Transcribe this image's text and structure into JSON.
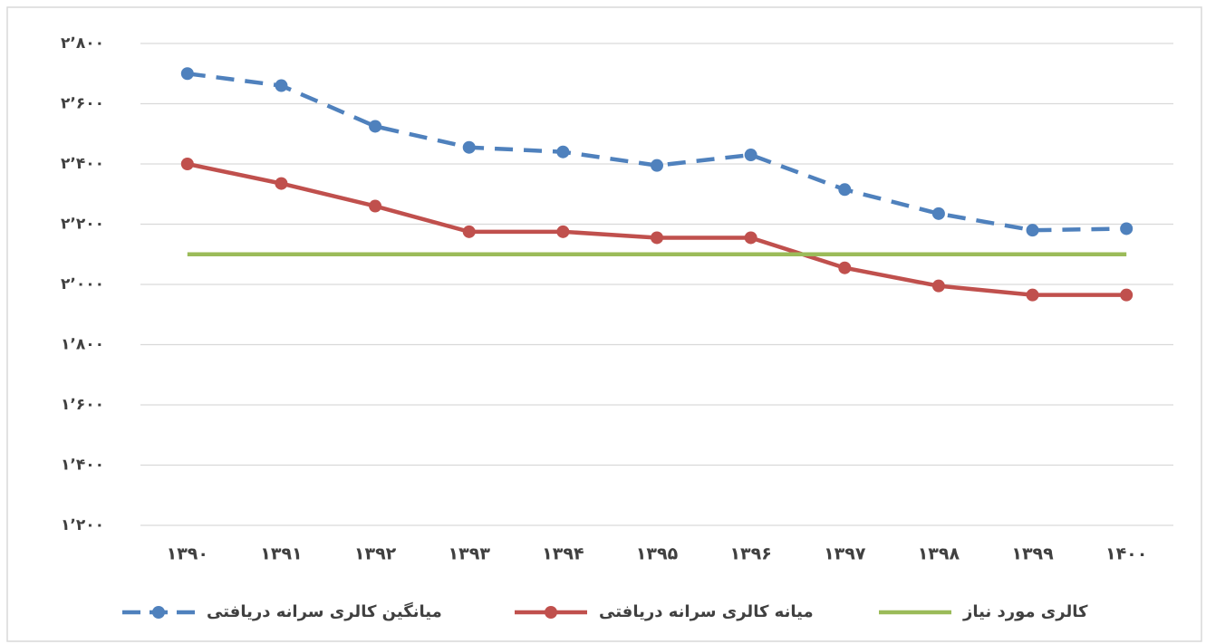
{
  "chart_data": {
    "type": "line",
    "categories": [
      "۱۳۹۰",
      "۱۳۹۱",
      "۱۳۹۲",
      "۱۳۹۳",
      "۱۳۹۴",
      "۱۳۹۵",
      "۱۳۹۶",
      "۱۳۹۷",
      "۱۳۹۸",
      "۱۳۹۹",
      "۱۴۰۰"
    ],
    "series": [
      {
        "name": "میانگین کالری سرانه دریافتی",
        "color": "#4f81bd",
        "dashed": true,
        "markers": true,
        "values": [
          2700,
          2660,
          2525,
          2455,
          2440,
          2395,
          2430,
          2315,
          2235,
          2180,
          2185
        ]
      },
      {
        "name": "میانه کالری سرانه دریافتی",
        "color": "#c0504d",
        "dashed": false,
        "markers": true,
        "values": [
          2400,
          2335,
          2260,
          2175,
          2175,
          2155,
          2155,
          2055,
          1995,
          1965,
          1965
        ]
      },
      {
        "name": "کالری مورد نیاز",
        "color": "#9bbb59",
        "dashed": false,
        "markers": false,
        "values": [
          2100,
          2100,
          2100,
          2100,
          2100,
          2100,
          2100,
          2100,
          2100,
          2100,
          2100
        ]
      }
    ],
    "ylim": [
      1200,
      2800
    ],
    "yticks": [
      {
        "value": 1200,
        "label": "۱٬۲۰۰"
      },
      {
        "value": 1400,
        "label": "۱٬۴۰۰"
      },
      {
        "value": 1600,
        "label": "۱٬۶۰۰"
      },
      {
        "value": 1800,
        "label": "۱٬۸۰۰"
      },
      {
        "value": 2000,
        "label": "۲٬۰۰۰"
      },
      {
        "value": 2200,
        "label": "۲٬۲۰۰"
      },
      {
        "value": 2400,
        "label": "۲٬۴۰۰"
      },
      {
        "value": 2600,
        "label": "۲٬۶۰۰"
      },
      {
        "value": 2800,
        "label": "۲٬۸۰۰"
      }
    ],
    "grid": true,
    "legend": "bottom"
  }
}
